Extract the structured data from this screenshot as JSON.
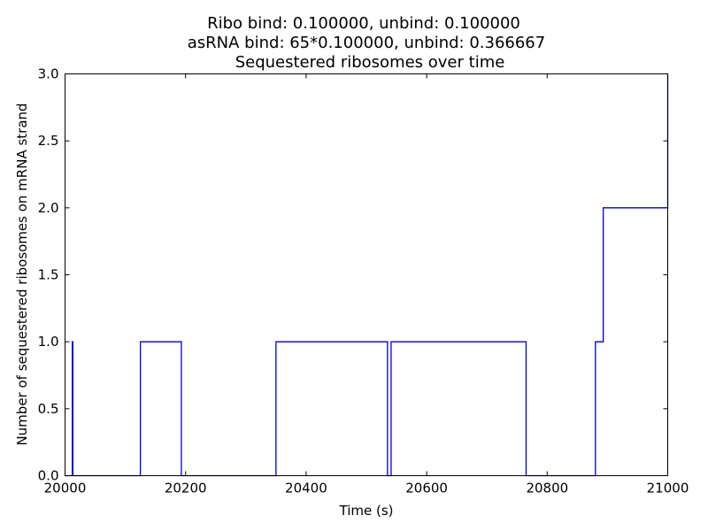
{
  "chart_data": {
    "type": "line",
    "title_lines": [
      "Ribo bind: 0.100000, unbind: 0.100000",
      "asRNA bind: 65*0.100000, unbind: 0.366667",
      "Sequestered ribosomes over time"
    ],
    "xlabel": "Time (s)",
    "ylabel": "Number of sequestered ribosomes on mRNA strand",
    "xlim": [
      20000,
      21000
    ],
    "ylim": [
      0,
      3
    ],
    "xticks": [
      20000,
      20200,
      20400,
      20600,
      20800,
      21000
    ],
    "xtick_labels": [
      "20000",
      "20200",
      "20400",
      "20600",
      "20800",
      "21000"
    ],
    "yticks": [
      0,
      0.5,
      1,
      1.5,
      2,
      2.5,
      3
    ],
    "ytick_labels": [
      "0.0",
      "0.5",
      "1.0",
      "1.5",
      "2.0",
      "2.5",
      "3.0"
    ],
    "grid": false,
    "legend": "none",
    "line_color": "#0000cc",
    "series": [
      {
        "step": "post",
        "x": [
          20000,
          20012,
          20012,
          20013,
          20013,
          20125,
          20125,
          20193,
          20193,
          20350,
          20350,
          20535,
          20535,
          20541,
          20541,
          20765,
          20765,
          20880,
          20880,
          20893,
          20893,
          20998,
          20998,
          21000,
          21000
        ],
        "y": [
          0,
          0,
          1,
          1,
          0,
          0,
          1,
          1,
          0,
          0,
          1,
          1,
          0,
          0,
          1,
          1,
          0,
          0,
          1,
          1,
          2,
          2,
          2,
          2,
          3
        ]
      }
    ]
  }
}
